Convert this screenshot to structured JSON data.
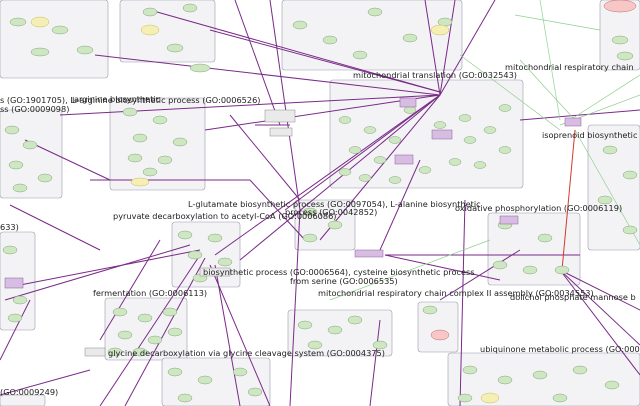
{
  "labels": {
    "go_1901705": "s (GO:1901705), L-",
    "go_0006526_a": "L-arginine biosynthetic process (GO:0006526)",
    "go_0006526_b": "arginine biosynthetic",
    "go_0009098": "ss (GO:0009098)",
    "go_0032543": "mitochondrial translation (GO:0032543)",
    "go_resp_chain": "mitochondrial respiratory chain",
    "go_isoprenoid": "isoprenoid biosynthetic proc",
    "go_0097054": "L-glutamate biosynthetic process (GO:0097054), L-alanine biosynthetic",
    "go_0042852": "process (GO:0042852)",
    "go_pyruvate": "pyruvate decarboxylation to acetyl-CoA (GO:0006086)",
    "go_0006119": "oxidative phosphorylation (GO:0006119)",
    "go_633": "633)",
    "go_0006564": "biosynthetic process (GO:0006564), cysteine biosynthetic process",
    "go_0006535": "from serine (GO:0006535)",
    "go_fermentation": "fermentation (GO:0006113)",
    "go_complex2": "mitochondrial respiratory chain complex II assembly (GO:0034553)",
    "go_dolichol": "dolichol phosphate mannose b",
    "go_glycine": "glycine decarboxylation via glycine cleavage system (GO:0004375)",
    "go_ubiquinone": "ubiquinone metabolic process (GO:00067",
    "go_0009249": "(GO:0009249)"
  }
}
